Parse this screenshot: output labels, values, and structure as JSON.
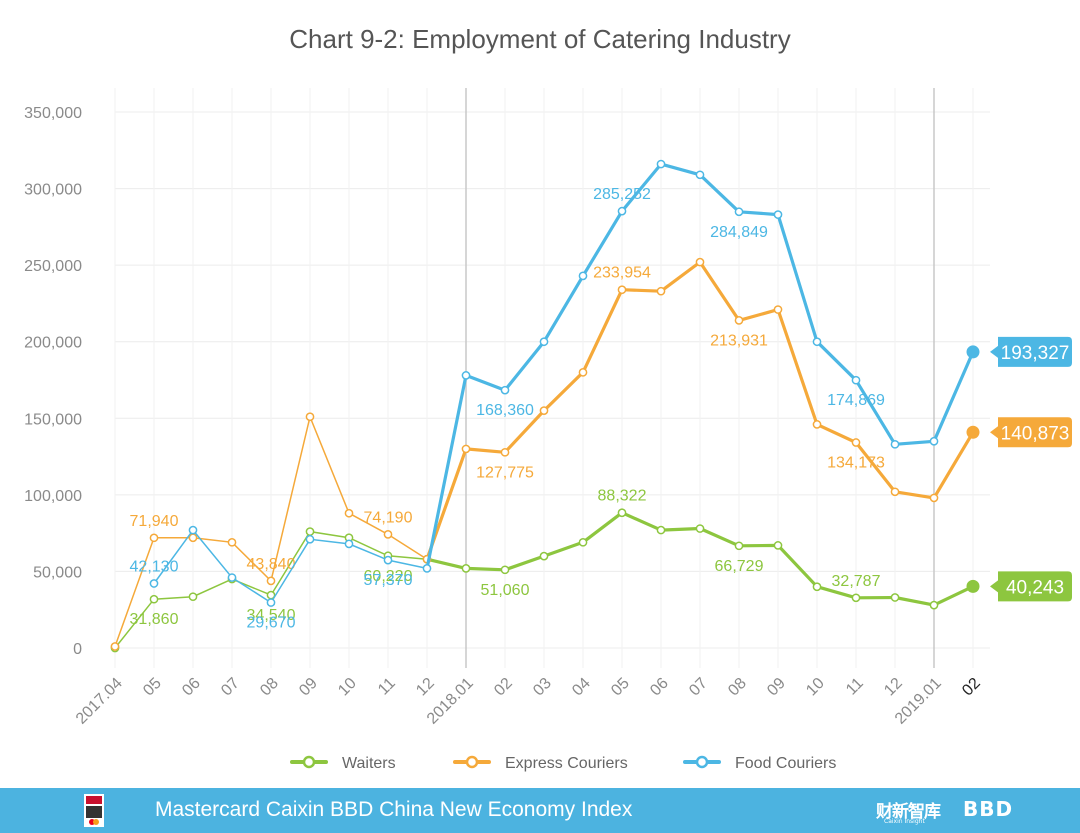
{
  "title": "Chart 9-2: Employment of Catering Industry",
  "footer": {
    "brand": "Mastercard Caixin BBD China New Economy Index",
    "partner_cn": "财新智库",
    "partner_cn_sub": "Caixin Insight",
    "partner_bbd": "BBD",
    "bg_color": "#4cb3e0"
  },
  "chart_data": {
    "type": "line",
    "categories": [
      "2017.04",
      "05",
      "06",
      "07",
      "08",
      "09",
      "10",
      "11",
      "12",
      "2018.01",
      "02",
      "03",
      "04",
      "05",
      "06",
      "07",
      "08",
      "09",
      "10",
      "11",
      "12",
      "2019.01",
      "02"
    ],
    "ylim": [
      0,
      350000
    ],
    "yticks": [
      0,
      50000,
      100000,
      150000,
      200000,
      250000,
      300000,
      350000
    ],
    "ytick_labels": [
      "0",
      "50,000",
      "100,000",
      "150,000",
      "200,000",
      "250,000",
      "300,000",
      "350,000"
    ],
    "series": [
      {
        "name": "Waiters",
        "color": "#8dc63f",
        "values": [
          0,
          31860,
          33500,
          45000,
          34540,
          76000,
          72000,
          60220,
          58000,
          52000,
          51060,
          60000,
          69000,
          88322,
          77000,
          78000,
          66729,
          67000,
          40000,
          32787,
          33000,
          28000,
          40243
        ],
        "labels": [
          {
            "index": 1,
            "text": "31,860",
            "pos": "below"
          },
          {
            "index": 4,
            "text": "34,540",
            "pos": "below"
          },
          {
            "index": 7,
            "text": "60,220",
            "pos": "below"
          },
          {
            "index": 10,
            "text": "51,060",
            "pos": "below"
          },
          {
            "index": 13,
            "text": "88,322",
            "pos": "above"
          },
          {
            "index": 16,
            "text": "66,729",
            "pos": "below"
          },
          {
            "index": 19,
            "text": "32,787",
            "pos": "above"
          }
        ],
        "end_label": "40,243"
      },
      {
        "name": "Express Couriers",
        "color": "#f5a93a",
        "values": [
          1000,
          71940,
          72000,
          69000,
          43840,
          151000,
          88000,
          74190,
          58000,
          130000,
          127775,
          155000,
          180000,
          233954,
          233000,
          252000,
          213931,
          221000,
          146000,
          134173,
          102000,
          98000,
          140873
        ],
        "labels": [
          {
            "index": 1,
            "text": "71,940",
            "pos": "above"
          },
          {
            "index": 4,
            "text": "43,840",
            "pos": "above"
          },
          {
            "index": 7,
            "text": "74,190",
            "pos": "above"
          },
          {
            "index": 10,
            "text": "127,775",
            "pos": "below"
          },
          {
            "index": 13,
            "text": "233,954",
            "pos": "above"
          },
          {
            "index": 16,
            "text": "213,931",
            "pos": "below"
          },
          {
            "index": 19,
            "text": "134,173",
            "pos": "below"
          }
        ],
        "end_label": "140,873"
      },
      {
        "name": "Food Couriers",
        "color": "#4cb7e4",
        "values": [
          null,
          42130,
          77000,
          46000,
          29670,
          71000,
          68000,
          57370,
          52000,
          178000,
          168360,
          200000,
          243000,
          285252,
          316000,
          309000,
          284849,
          283000,
          200000,
          174869,
          133000,
          135000,
          193327
        ],
        "labels": [
          {
            "index": 1,
            "text": "42,130",
            "pos": "above"
          },
          {
            "index": 4,
            "text": "29,670",
            "pos": "below"
          },
          {
            "index": 7,
            "text": "57,370",
            "pos": "below"
          },
          {
            "index": 10,
            "text": "168,360",
            "pos": "below"
          },
          {
            "index": 13,
            "text": "285,252",
            "pos": "above"
          },
          {
            "index": 16,
            "text": "284,849",
            "pos": "below"
          },
          {
            "index": 19,
            "text": "174,869",
            "pos": "below"
          }
        ],
        "end_label": "193,327"
      }
    ],
    "legend": [
      "Waiters",
      "Express Couriers",
      "Food Couriers"
    ],
    "legend_position": "bottom"
  }
}
